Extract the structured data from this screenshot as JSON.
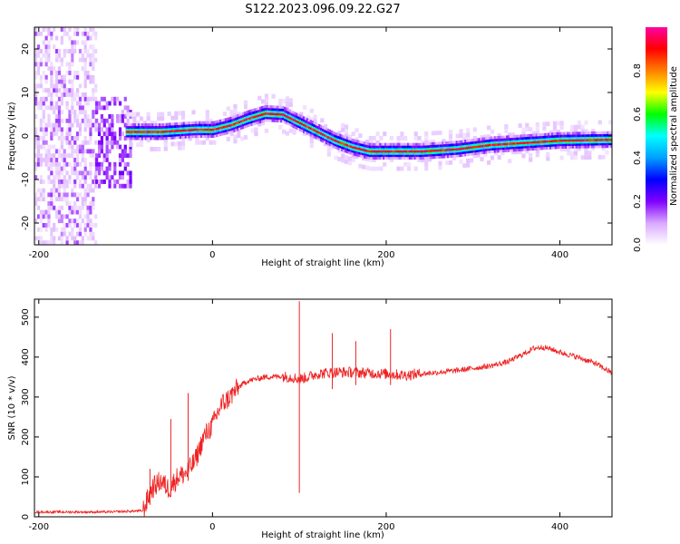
{
  "title": "S122.2023.096.09.22.G27",
  "chart_data": [
    {
      "type": "heatmap",
      "xlabel": "Height of straight line (km)",
      "ylabel": "Frequency (Hz)",
      "xlim": [
        -205,
        460
      ],
      "ylim": [
        -25,
        25
      ],
      "xticks": [
        -200,
        0,
        200,
        400
      ],
      "yticks": [
        -20,
        -10,
        0,
        10,
        20
      ],
      "grid": false,
      "colorbar": {
        "label": "Normalized spectral amplitude",
        "range": [
          0.0,
          1.0
        ],
        "ticks": [
          "0.0",
          "0.2",
          "0.4",
          "0.6",
          "0.8"
        ],
        "colormap": [
          "#ffffff",
          "#d9a8ff",
          "#8000ff",
          "#0000ff",
          "#00a0ff",
          "#00ffff",
          "#00ff00",
          "#ffff00",
          "#ff8000",
          "#ff0000",
          "#ff00a0"
        ]
      },
      "ridge": {
        "x": [
          -100,
          -60,
          -20,
          0,
          20,
          40,
          60,
          80,
          100,
          120,
          140,
          160,
          180,
          200,
          240,
          280,
          320,
          360,
          400,
          460
        ],
        "y": [
          1,
          1,
          1.5,
          1.5,
          2.5,
          4,
          5.2,
          5,
          3,
          1,
          -1,
          -2.5,
          -3.5,
          -3.5,
          -3.5,
          -3,
          -2,
          -1.5,
          -1,
          -0.8
        ]
      }
    },
    {
      "type": "line",
      "xlabel": "Height of straight line (km)",
      "ylabel": "SNR (10 * v/v)",
      "xlim": [
        -205,
        460
      ],
      "ylim": [
        0,
        545
      ],
      "xticks": [
        -200,
        0,
        200,
        400
      ],
      "yticks": [
        0,
        100,
        200,
        300,
        400,
        500
      ],
      "grid": false,
      "color": "#ee2222",
      "series": [
        {
          "x": [
            -205,
            -120,
            -80,
            -70,
            -60,
            -50,
            -40,
            -30,
            -20,
            -10,
            0,
            10,
            20,
            30,
            40,
            60,
            80,
            90,
            100,
            110,
            120,
            140,
            160,
            180,
            200,
            220,
            240,
            260,
            280,
            300,
            320,
            340,
            360,
            370,
            380,
            390,
            400,
            420,
            440,
            460
          ],
          "values": [
            12,
            12,
            15,
            70,
            90,
            70,
            100,
            110,
            140,
            200,
            230,
            280,
            300,
            325,
            340,
            350,
            352,
            350,
            345,
            350,
            358,
            362,
            362,
            360,
            358,
            355,
            358,
            362,
            366,
            372,
            378,
            388,
            410,
            422,
            425,
            420,
            412,
            400,
            385,
            360
          ]
        }
      ],
      "spikes": [
        {
          "x": 100,
          "max": 540,
          "min": 60
        },
        {
          "x": 138,
          "max": 460,
          "min": 320
        },
        {
          "x": 165,
          "max": 440,
          "min": 330
        },
        {
          "x": 205,
          "max": 470,
          "min": 330
        },
        {
          "x": -28,
          "max": 310,
          "min": 90
        },
        {
          "x": -48,
          "max": 245,
          "min": 50
        },
        {
          "x": -72,
          "max": 120,
          "min": 30
        }
      ]
    }
  ]
}
